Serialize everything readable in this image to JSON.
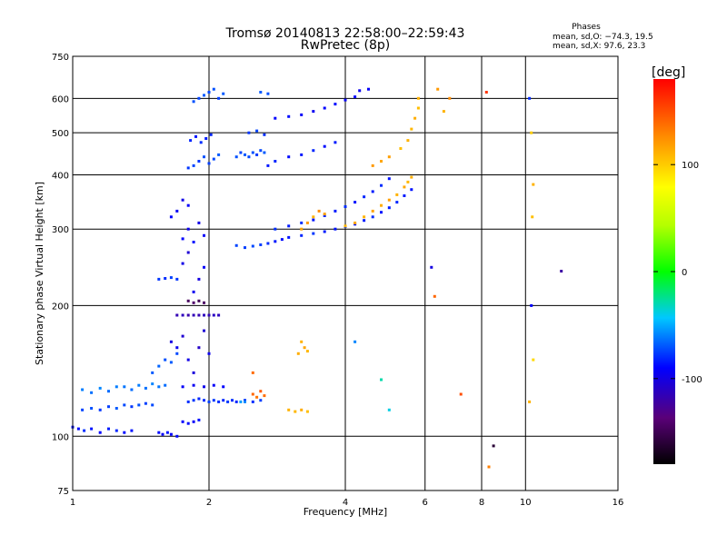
{
  "chart_data": {
    "type": "scatter",
    "title": "Tromsø 20140813 22:58:00–22:59:43",
    "subtitle": "RwPretec (8p)",
    "xlabel": "Frequency [MHz]",
    "ylabel": "Stationary phase Virtual Height [km]",
    "x_scale": "log",
    "y_scale": "log",
    "xlim": [
      1,
      16
    ],
    "ylim": [
      75,
      750
    ],
    "x_ticks": [
      1,
      2,
      4,
      6,
      8,
      10,
      16
    ],
    "y_ticks": [
      75,
      100,
      200,
      300,
      400,
      500,
      600,
      750
    ],
    "grid": true,
    "stats": {
      "heading": "Phases",
      "line_o": "mean, sd,O: −74.3, 19.5",
      "line_x": "mean, sd,X:  97.6, 23.3"
    },
    "colorbar": {
      "label": "[deg]",
      "range": [
        -180,
        180
      ],
      "ticks": [
        100,
        0,
        -100
      ],
      "colormap": "rainbow"
    },
    "series": [
      {
        "points": [
          [
            1.0,
            105,
            -85
          ],
          [
            1.03,
            104,
            -88
          ],
          [
            1.06,
            103,
            -80
          ],
          [
            1.1,
            104,
            -86
          ],
          [
            1.15,
            102,
            -90
          ],
          [
            1.2,
            104,
            -84
          ],
          [
            1.25,
            103,
            -82
          ],
          [
            1.3,
            102,
            -88
          ],
          [
            1.35,
            103,
            -86
          ],
          [
            1.05,
            115,
            -75
          ],
          [
            1.1,
            116,
            -72
          ],
          [
            1.15,
            115,
            -78
          ],
          [
            1.2,
            117,
            -76
          ],
          [
            1.25,
            116,
            -70
          ],
          [
            1.3,
            118,
            -74
          ],
          [
            1.35,
            117,
            -78
          ],
          [
            1.4,
            118,
            -72
          ],
          [
            1.45,
            119,
            -76
          ],
          [
            1.5,
            118,
            -74
          ],
          [
            1.05,
            128,
            -62
          ],
          [
            1.1,
            126,
            -65
          ],
          [
            1.15,
            129,
            -60
          ],
          [
            1.2,
            127,
            -66
          ],
          [
            1.25,
            130,
            -62
          ],
          [
            1.3,
            130,
            -64
          ],
          [
            1.35,
            128,
            -66
          ],
          [
            1.4,
            131,
            -62
          ],
          [
            1.45,
            129,
            -65
          ],
          [
            1.5,
            132,
            -60
          ],
          [
            1.55,
            130,
            -64
          ],
          [
            1.6,
            131,
            -66
          ],
          [
            1.55,
            102,
            -88
          ],
          [
            1.58,
            101,
            -92
          ],
          [
            1.62,
            102,
            -86
          ],
          [
            1.65,
            101,
            -90
          ],
          [
            1.7,
            100,
            -88
          ],
          [
            1.5,
            140,
            -70
          ],
          [
            1.55,
            145,
            -68
          ],
          [
            1.6,
            150,
            -72
          ],
          [
            1.65,
            148,
            -70
          ],
          [
            1.7,
            155,
            -74
          ],
          [
            1.75,
            108,
            -90
          ],
          [
            1.8,
            107,
            -88
          ],
          [
            1.85,
            108,
            -92
          ],
          [
            1.9,
            109,
            -86
          ],
          [
            1.8,
            120,
            -80
          ],
          [
            1.85,
            121,
            -78
          ],
          [
            1.9,
            122,
            -82
          ],
          [
            1.95,
            121,
            -80
          ],
          [
            2.0,
            120,
            -76
          ],
          [
            2.05,
            121,
            -78
          ],
          [
            2.1,
            120,
            -80
          ],
          [
            2.15,
            121,
            -82
          ],
          [
            2.2,
            120,
            -78
          ],
          [
            2.25,
            121,
            -80
          ],
          [
            2.3,
            120,
            -82
          ],
          [
            2.4,
            121,
            -78
          ],
          [
            2.5,
            120,
            -80
          ],
          [
            2.6,
            121,
            -76
          ],
          [
            1.75,
            130,
            -92
          ],
          [
            1.85,
            131,
            -94
          ],
          [
            1.95,
            130,
            -96
          ],
          [
            2.05,
            131,
            -92
          ],
          [
            2.15,
            130,
            -90
          ],
          [
            1.7,
            190,
            -115
          ],
          [
            1.75,
            190,
            -112
          ],
          [
            1.8,
            190,
            -118
          ],
          [
            1.85,
            190,
            -114
          ],
          [
            1.9,
            190,
            -116
          ],
          [
            1.95,
            190,
            -112
          ],
          [
            2.0,
            190,
            -114
          ],
          [
            2.05,
            190,
            -110
          ],
          [
            2.1,
            190,
            -112
          ],
          [
            1.8,
            205,
            -145
          ],
          [
            1.85,
            203,
            -140
          ],
          [
            1.9,
            205,
            -148
          ],
          [
            1.95,
            203,
            -142
          ],
          [
            1.65,
            165,
            -100
          ],
          [
            1.7,
            160,
            -95
          ],
          [
            1.75,
            170,
            -105
          ],
          [
            1.8,
            150,
            -98
          ],
          [
            1.85,
            140,
            -102
          ],
          [
            1.9,
            160,
            -108
          ],
          [
            1.95,
            175,
            -104
          ],
          [
            2.0,
            155,
            -96
          ],
          [
            1.85,
            215,
            -95
          ],
          [
            1.9,
            230,
            -100
          ],
          [
            1.95,
            245,
            -92
          ],
          [
            1.75,
            250,
            -98
          ],
          [
            1.8,
            265,
            -104
          ],
          [
            1.55,
            230,
            -78
          ],
          [
            1.6,
            231,
            -80
          ],
          [
            1.65,
            232,
            -76
          ],
          [
            1.7,
            230,
            -78
          ],
          [
            1.75,
            285,
            -90
          ],
          [
            1.8,
            300,
            -95
          ],
          [
            1.85,
            280,
            -86
          ],
          [
            1.9,
            310,
            -98
          ],
          [
            1.95,
            290,
            -92
          ],
          [
            1.65,
            320,
            -90
          ],
          [
            1.7,
            330,
            -94
          ],
          [
            1.75,
            350,
            -98
          ],
          [
            1.8,
            340,
            -92
          ],
          [
            1.85,
            420,
            -75
          ],
          [
            1.9,
            430,
            -78
          ],
          [
            1.95,
            440,
            -72
          ],
          [
            2.0,
            425,
            -76
          ],
          [
            2.05,
            435,
            -74
          ],
          [
            2.1,
            445,
            -70
          ],
          [
            1.8,
            415,
            -78
          ],
          [
            1.82,
            480,
            -82
          ],
          [
            1.87,
            490,
            -85
          ],
          [
            1.92,
            475,
            -80
          ],
          [
            1.97,
            485,
            -84
          ],
          [
            2.02,
            495,
            -82
          ],
          [
            1.85,
            590,
            -72
          ],
          [
            1.9,
            600,
            -75
          ],
          [
            1.95,
            610,
            -70
          ],
          [
            2.0,
            620,
            -74
          ],
          [
            2.05,
            630,
            -72
          ],
          [
            2.1,
            600,
            -76
          ],
          [
            2.15,
            615,
            -70
          ],
          [
            2.3,
            440,
            -72
          ],
          [
            2.35,
            450,
            -75
          ],
          [
            2.4,
            445,
            -70
          ],
          [
            2.45,
            440,
            -74
          ],
          [
            2.5,
            450,
            -72
          ],
          [
            2.55,
            445,
            -78
          ],
          [
            2.6,
            455,
            -74
          ],
          [
            2.65,
            450,
            -70
          ],
          [
            2.3,
            275,
            -75
          ],
          [
            2.4,
            272,
            -76
          ],
          [
            2.5,
            274,
            -74
          ],
          [
            2.6,
            276,
            -76
          ],
          [
            2.7,
            278,
            -80
          ],
          [
            2.8,
            281,
            -85
          ],
          [
            2.9,
            284,
            -88
          ],
          [
            3.0,
            287,
            -86
          ],
          [
            3.2,
            290,
            -82
          ],
          [
            3.4,
            293,
            -78
          ],
          [
            3.6,
            296,
            -84
          ],
          [
            3.8,
            300,
            -86
          ],
          [
            4.0,
            304,
            -80
          ],
          [
            4.2,
            308,
            -86
          ],
          [
            4.4,
            314,
            -84
          ],
          [
            4.6,
            320,
            -80
          ],
          [
            4.8,
            328,
            -86
          ],
          [
            5.0,
            336,
            -84
          ],
          [
            5.2,
            346,
            -82
          ],
          [
            5.4,
            358,
            -84
          ],
          [
            5.6,
            370,
            -86
          ],
          [
            2.8,
            300,
            -80
          ],
          [
            3.0,
            305,
            -84
          ],
          [
            3.2,
            310,
            -80
          ],
          [
            3.4,
            315,
            -86
          ],
          [
            3.6,
            322,
            -82
          ],
          [
            3.8,
            330,
            -84
          ],
          [
            4.0,
            338,
            -80
          ],
          [
            4.2,
            346,
            -86
          ],
          [
            4.4,
            356,
            -82
          ],
          [
            4.6,
            366,
            -84
          ],
          [
            4.8,
            378,
            -80
          ],
          [
            5.0,
            392,
            -86
          ],
          [
            2.7,
            420,
            -85
          ],
          [
            2.8,
            430,
            -82
          ],
          [
            3.0,
            440,
            -88
          ],
          [
            3.2,
            445,
            -85
          ],
          [
            3.4,
            455,
            -82
          ],
          [
            3.6,
            465,
            -88
          ],
          [
            3.8,
            475,
            -84
          ],
          [
            2.8,
            540,
            -90
          ],
          [
            3.0,
            545,
            -88
          ],
          [
            3.2,
            550,
            -92
          ],
          [
            3.4,
            560,
            -94
          ],
          [
            3.6,
            570,
            -90
          ],
          [
            3.8,
            582,
            -88
          ],
          [
            4.0,
            595,
            -92
          ],
          [
            4.2,
            605,
            -90
          ],
          [
            2.6,
            620,
            -70
          ],
          [
            2.7,
            615,
            -72
          ],
          [
            4.3,
            625,
            -95
          ],
          [
            4.5,
            630,
            -92
          ],
          [
            2.45,
            500,
            -78
          ],
          [
            2.55,
            505,
            -75
          ],
          [
            2.65,
            495,
            -80
          ],
          [
            3.2,
            300,
            115
          ],
          [
            3.3,
            310,
            120
          ],
          [
            3.4,
            320,
            110
          ],
          [
            3.5,
            330,
            125
          ],
          [
            3.6,
            325,
            118
          ],
          [
            4.0,
            305,
            108
          ],
          [
            4.2,
            310,
            114
          ],
          [
            4.4,
            320,
            110
          ],
          [
            4.6,
            330,
            116
          ],
          [
            4.8,
            340,
            112
          ],
          [
            5.0,
            350,
            118
          ],
          [
            5.2,
            360,
            110
          ],
          [
            5.4,
            375,
            114
          ],
          [
            5.5,
            385,
            108
          ],
          [
            5.6,
            395,
            112
          ],
          [
            5.3,
            460,
            105
          ],
          [
            5.5,
            480,
            110
          ],
          [
            5.6,
            510,
            108
          ],
          [
            5.7,
            540,
            112
          ],
          [
            5.8,
            570,
            106
          ],
          [
            5.8,
            600,
            110
          ],
          [
            4.6,
            420,
            120
          ],
          [
            4.8,
            430,
            115
          ],
          [
            5.0,
            440,
            118
          ],
          [
            3.2,
            165,
            110
          ],
          [
            3.25,
            160,
            115
          ],
          [
            3.3,
            157,
            108
          ],
          [
            3.15,
            155,
            112
          ],
          [
            3.0,
            115,
            110
          ],
          [
            3.1,
            114,
            108
          ],
          [
            3.2,
            115,
            112
          ],
          [
            3.3,
            114,
            106
          ],
          [
            2.5,
            125,
            140
          ],
          [
            2.55,
            123,
            135
          ],
          [
            2.6,
            127,
            145
          ],
          [
            2.65,
            124,
            138
          ],
          [
            2.5,
            140,
            138
          ],
          [
            2.35,
            120,
            -55
          ],
          [
            2.4,
            120,
            -60
          ],
          [
            6.4,
            630,
            120
          ],
          [
            6.6,
            560,
            110
          ],
          [
            6.8,
            600,
            125
          ],
          [
            7.2,
            125,
            150
          ],
          [
            6.3,
            210,
            140
          ],
          [
            8.3,
            85,
            130
          ],
          [
            8.5,
            95,
            -160
          ],
          [
            8.2,
            620,
            160
          ],
          [
            10.2,
            600,
            -80
          ],
          [
            10.3,
            500,
            100
          ],
          [
            10.4,
            380,
            110
          ],
          [
            10.35,
            320,
            105
          ],
          [
            10.3,
            200,
            -90
          ],
          [
            10.4,
            150,
            95
          ],
          [
            10.2,
            120,
            110
          ],
          [
            12.0,
            240,
            -120
          ],
          [
            5.0,
            115,
            -40
          ],
          [
            4.8,
            135,
            -30
          ],
          [
            4.2,
            165,
            -60
          ],
          [
            6.2,
            245,
            -100
          ]
        ]
      }
    ]
  }
}
